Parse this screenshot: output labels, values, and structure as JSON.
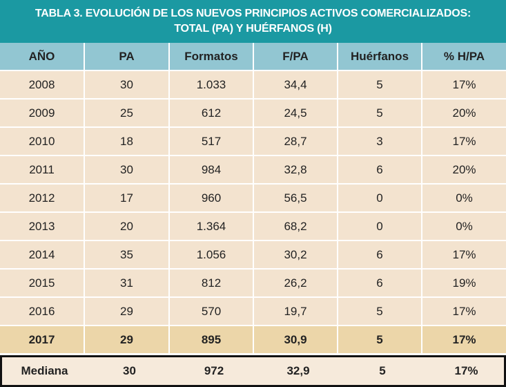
{
  "table": {
    "title": [
      "TABLA 3. EVOLUCIÓN DE LOS NUEVOS PRINCIPIOS ACTIVOS COMERCIALIZADOS:",
      "TOTAL (PA) Y HUÉRFANOS (H)"
    ],
    "header": [
      "AÑO",
      "PA",
      "Formatos",
      "F/PA",
      "Huérfanos",
      "% H/PA"
    ],
    "rows": [
      [
        "2008",
        "30",
        "1.033",
        "34,4",
        "5",
        "17%"
      ],
      [
        "2009",
        "25",
        "612",
        "24,5",
        "5",
        "20%"
      ],
      [
        "2010",
        "18",
        "517",
        "28,7",
        "3",
        "17%"
      ],
      [
        "2011",
        "30",
        "984",
        "32,8",
        "6",
        "20%"
      ],
      [
        "2012",
        "17",
        "960",
        "56,5",
        "0",
        "0%"
      ],
      [
        "2013",
        "20",
        "1.364",
        "68,2",
        "0",
        "0%"
      ],
      [
        "2014",
        "35",
        "1.056",
        "30,2",
        "6",
        "17%"
      ],
      [
        "2015",
        "31",
        "812",
        "26,2",
        "6",
        "19%"
      ],
      [
        "2016",
        "29",
        "570",
        "19,7",
        "5",
        "17%"
      ]
    ],
    "highlight_row": [
      "2017",
      "29",
      "895",
      "30,9",
      "5",
      "17%"
    ],
    "median_row": [
      "Mediana",
      "30",
      "972",
      "32,9",
      "5",
      "17%"
    ]
  }
}
